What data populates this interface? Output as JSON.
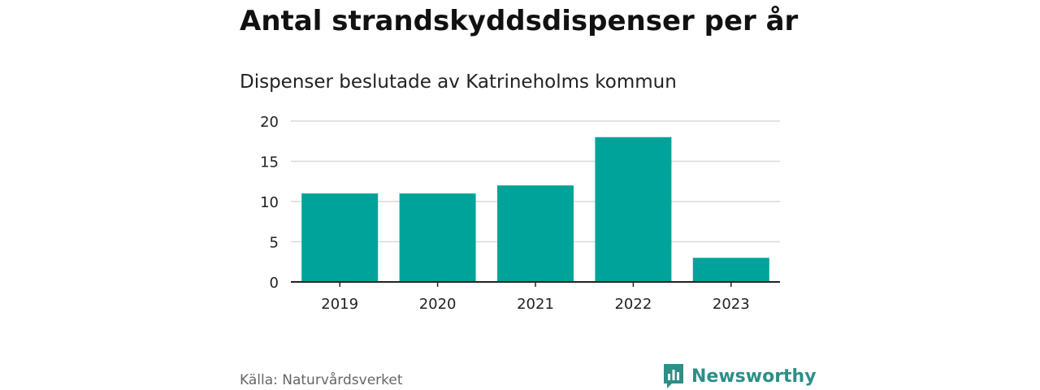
{
  "chart_data": {
    "type": "bar",
    "title": "Antal strandskyddsdispenser per år",
    "subtitle": "Dispenser beslutade av Katrineholms kommun",
    "categories": [
      "2019",
      "2020",
      "2021",
      "2022",
      "2023"
    ],
    "values": [
      11,
      11,
      12,
      18,
      3
    ],
    "ylim": [
      0,
      20
    ],
    "yticks": [
      "0",
      "5",
      "10",
      "15",
      "20"
    ],
    "ytick_values": [
      0,
      5,
      10,
      15,
      20
    ],
    "xlabel": "",
    "ylabel": "",
    "grid": true,
    "bar_color": "#00a39a"
  },
  "footer": {
    "source": "Källa: Naturvårdsverket",
    "brand": "Newsworthy",
    "brand_icon": "bar-chart-logo-icon",
    "brand_color": "#2d8f87"
  }
}
